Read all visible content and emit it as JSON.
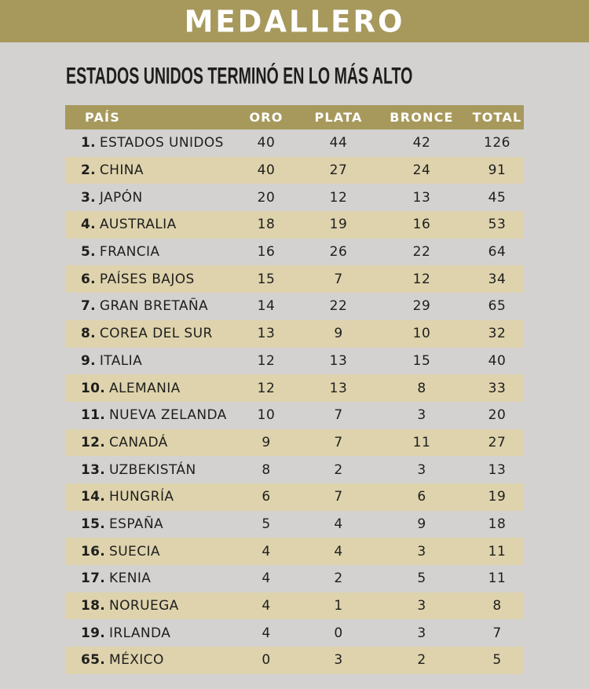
{
  "banner": {
    "title": "MEDALLERO"
  },
  "headline": "ESTADOS UNIDOS TERMINÓ EN LO MÁS ALTO",
  "colors": {
    "accent": "#a7995c",
    "stripe": "#ded3ad",
    "page-bg": "#d3d2d0",
    "ink": "#1e1e1c",
    "banner-text": "#ffffff"
  },
  "chart_data": {
    "type": "table",
    "title": "MEDALLERO",
    "subtitle": "ESTADOS UNIDOS TERMINÓ EN LO MÁS ALTO",
    "columns": [
      "PAÍS",
      "ORO",
      "PLATA",
      "BRONCE",
      "TOTAL"
    ],
    "legend_position": "none",
    "grid": false,
    "rows": [
      {
        "rank": "1.",
        "country": "ESTADOS UNIDOS",
        "oro": 40,
        "plata": 44,
        "bronce": 42,
        "total": 126
      },
      {
        "rank": "2.",
        "country": "CHINA",
        "oro": 40,
        "plata": 27,
        "bronce": 24,
        "total": 91
      },
      {
        "rank": "3.",
        "country": "JAPÓN",
        "oro": 20,
        "plata": 12,
        "bronce": 13,
        "total": 45
      },
      {
        "rank": "4.",
        "country": "AUSTRALIA",
        "oro": 18,
        "plata": 19,
        "bronce": 16,
        "total": 53
      },
      {
        "rank": "5.",
        "country": "FRANCIA",
        "oro": 16,
        "plata": 26,
        "bronce": 22,
        "total": 64
      },
      {
        "rank": "6.",
        "country": "PAÍSES BAJOS",
        "oro": 15,
        "plata": 7,
        "bronce": 12,
        "total": 34
      },
      {
        "rank": "7.",
        "country": "GRAN BRETAÑA",
        "oro": 14,
        "plata": 22,
        "bronce": 29,
        "total": 65
      },
      {
        "rank": "8.",
        "country": "COREA DEL SUR",
        "oro": 13,
        "plata": 9,
        "bronce": 10,
        "total": 32
      },
      {
        "rank": "9.",
        "country": "ITALIA",
        "oro": 12,
        "plata": 13,
        "bronce": 15,
        "total": 40
      },
      {
        "rank": "10.",
        "country": "ALEMANIA",
        "oro": 12,
        "plata": 13,
        "bronce": 8,
        "total": 33
      },
      {
        "rank": "11.",
        "country": "NUEVA ZELANDA",
        "oro": 10,
        "plata": 7,
        "bronce": 3,
        "total": 20
      },
      {
        "rank": "12.",
        "country": "CANADÁ",
        "oro": 9,
        "plata": 7,
        "bronce": 11,
        "total": 27
      },
      {
        "rank": "13.",
        "country": "UZBEKISTÁN",
        "oro": 8,
        "plata": 2,
        "bronce": 3,
        "total": 13
      },
      {
        "rank": "14.",
        "country": "HUNGRÍA",
        "oro": 6,
        "plata": 7,
        "bronce": 6,
        "total": 19
      },
      {
        "rank": "15.",
        "country": "ESPAÑA",
        "oro": 5,
        "plata": 4,
        "bronce": 9,
        "total": 18
      },
      {
        "rank": "16.",
        "country": "SUECIA",
        "oro": 4,
        "plata": 4,
        "bronce": 3,
        "total": 11
      },
      {
        "rank": "17.",
        "country": "KENIA",
        "oro": 4,
        "plata": 2,
        "bronce": 5,
        "total": 11
      },
      {
        "rank": "18.",
        "country": "NORUEGA",
        "oro": 4,
        "plata": 1,
        "bronce": 3,
        "total": 8
      },
      {
        "rank": "19.",
        "country": "IRLANDA",
        "oro": 4,
        "plata": 0,
        "bronce": 3,
        "total": 7
      },
      {
        "rank": "65.",
        "country": "MÉXICO",
        "oro": 0,
        "plata": 3,
        "bronce": 2,
        "total": 5
      }
    ]
  }
}
